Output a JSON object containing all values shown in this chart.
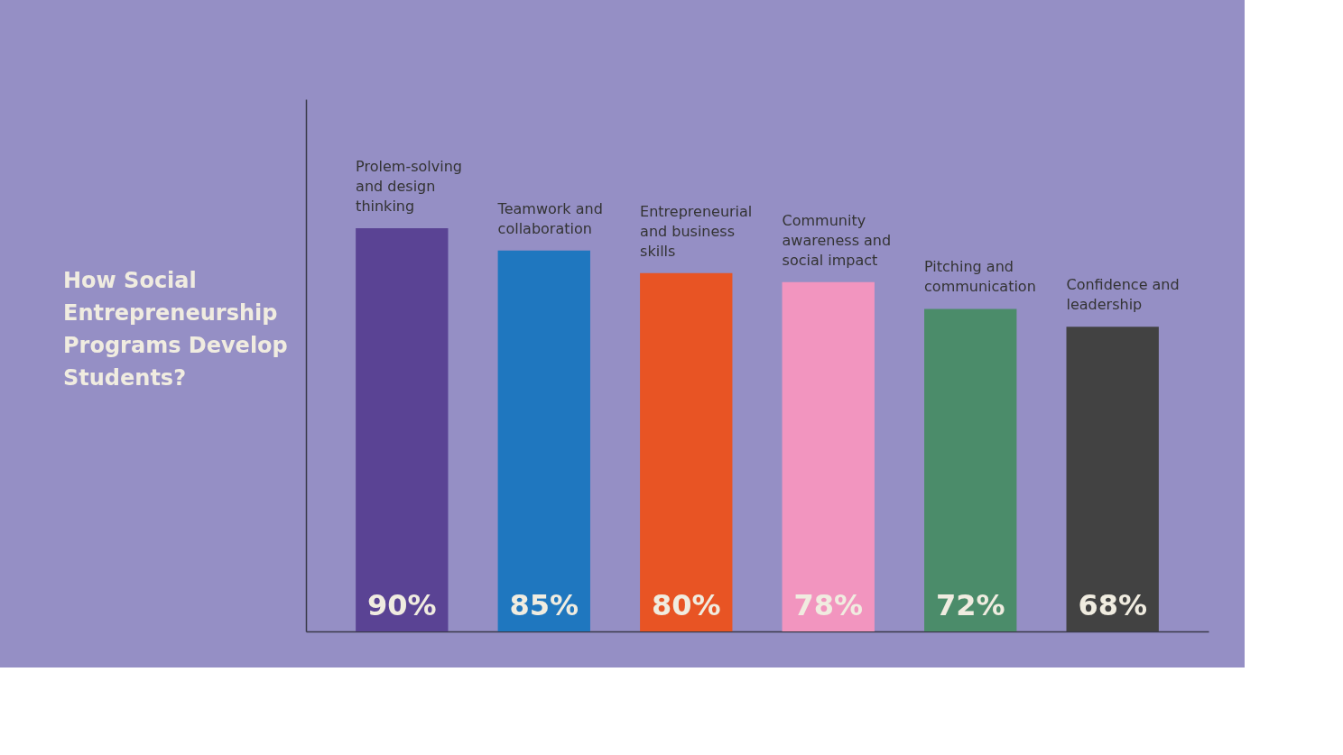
{
  "chart_data": {
    "type": "bar",
    "title": "How Social Entrepreneurship Programs Develop Students?",
    "categories": [
      "Prolem-solving and design thinking",
      "Teamwork and collaboration",
      "Entrepreneurial and business skills",
      "Community awareness and social impact",
      "Pitching and communication",
      "Confidence and leadership"
    ],
    "values": [
      90,
      85,
      80,
      78,
      72,
      68
    ],
    "value_labels": [
      "90%",
      "85%",
      "80%",
      "78%",
      "72%",
      "68%"
    ],
    "colors": [
      "#5a4394",
      "#1f77bf",
      "#e85424",
      "#f295bf",
      "#4b8c6a",
      "#424242"
    ]
  }
}
